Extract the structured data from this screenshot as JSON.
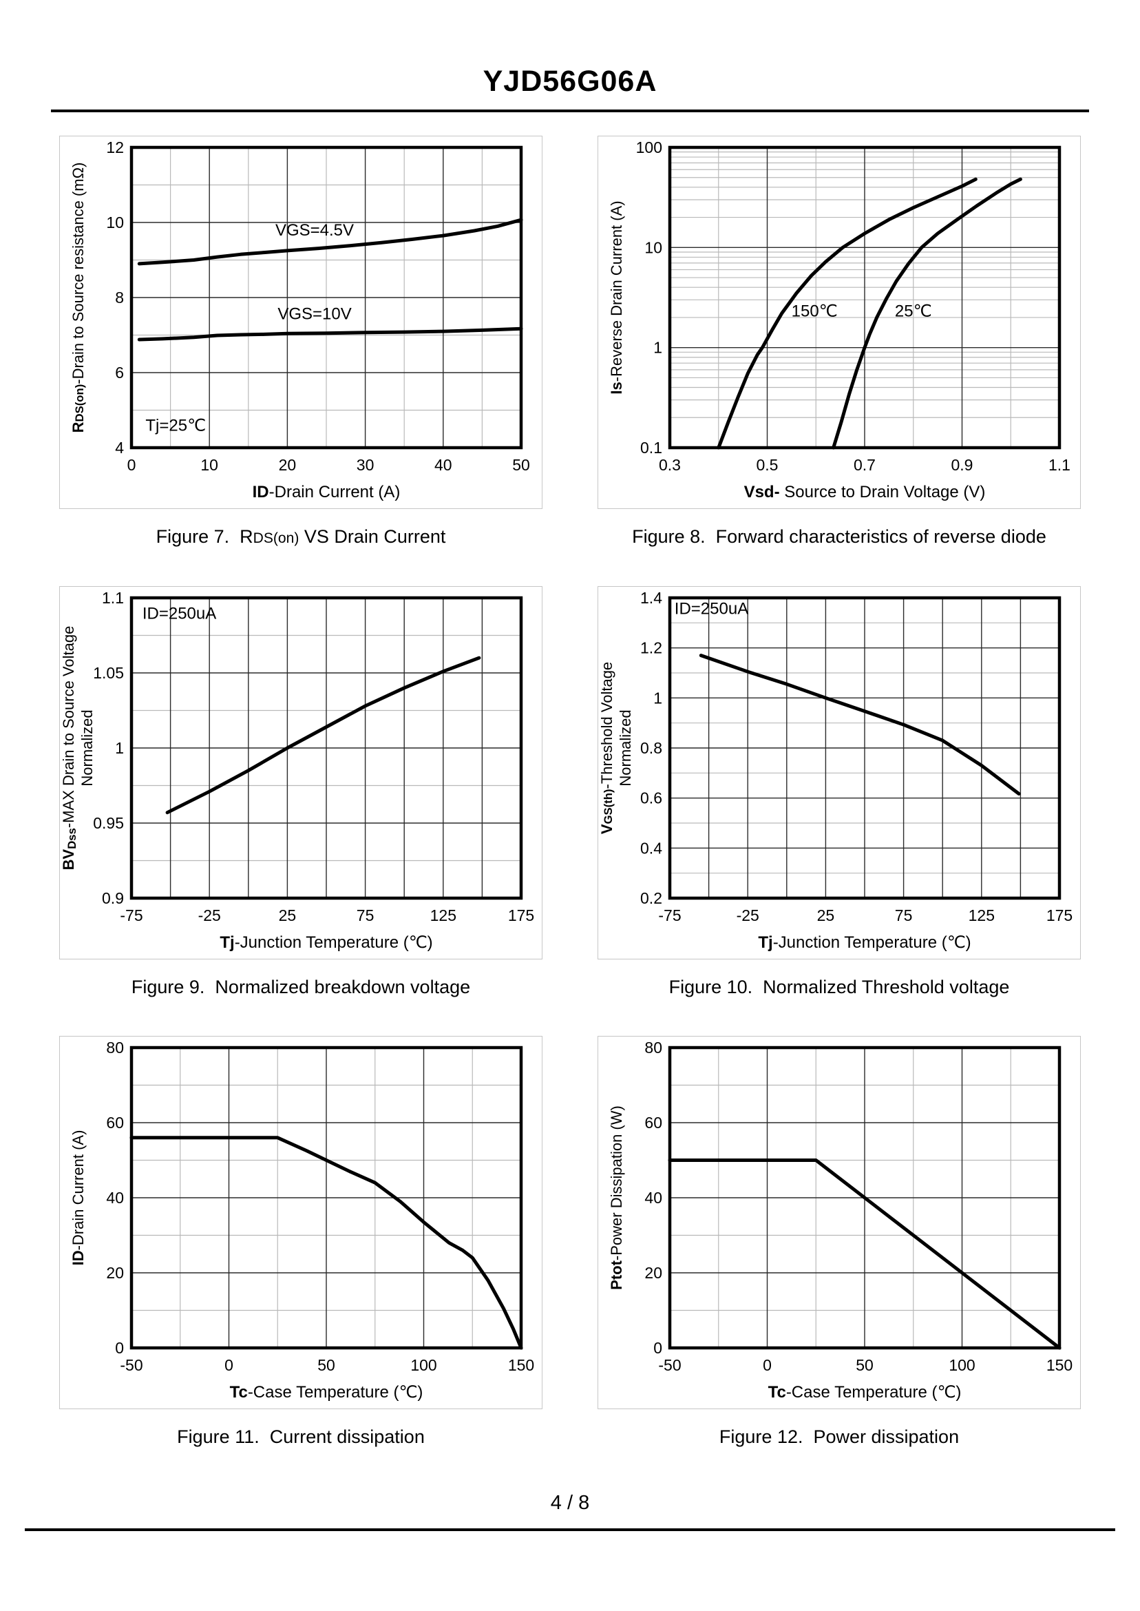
{
  "page": {
    "title": "YJD56G06A",
    "page_number": "4 / 8"
  },
  "chart_data": [
    {
      "id": "figure-7",
      "type": "line",
      "caption": [
        {
          "t": "Figure 7.  R"
        },
        {
          "t": "DS(on)",
          "small": true
        },
        {
          "t": " VS Drain Current"
        }
      ],
      "xlabel": [
        {
          "t": "ID",
          "b": true
        },
        {
          "t": "-Drain Current  (A)"
        }
      ],
      "ylabel": [
        [
          {
            "t": "R",
            "b": true
          },
          {
            "t": "DS(on)",
            "b": true,
            "small": true
          },
          {
            "t": "-Drain to Source resistance  (mΩ)"
          }
        ]
      ],
      "x": {
        "min": 0,
        "max": 50,
        "ticks": [
          [
            0,
            "0"
          ],
          [
            10,
            "10"
          ],
          [
            20,
            "20"
          ],
          [
            30,
            "30"
          ],
          [
            40,
            "40"
          ],
          [
            50,
            "50"
          ]
        ],
        "grid_major": [
          10,
          20,
          30,
          40
        ],
        "grid_minor": [
          5,
          15,
          25,
          35,
          45
        ]
      },
      "y": {
        "min": 4,
        "max": 12,
        "ticks": [
          [
            4,
            "4"
          ],
          [
            6,
            "6"
          ],
          [
            8,
            "8"
          ],
          [
            10,
            "10"
          ],
          [
            12,
            "12"
          ]
        ],
        "grid_major": [
          6,
          8,
          10
        ],
        "grid_minor": [
          5,
          7,
          9,
          11
        ]
      },
      "annotations": [
        {
          "t": "VGS=4.5V",
          "x": 23.5,
          "y": 9.65,
          "anchor": "middle"
        },
        {
          "t": "VGS=10V",
          "x": 23.5,
          "y": 7.42,
          "anchor": "middle"
        },
        {
          "t": "Tj=25℃",
          "x": 1.8,
          "y": 4.45,
          "anchor": "start"
        }
      ],
      "series": [
        {
          "name": "VGS=4.5V",
          "points": [
            [
              1,
              8.9
            ],
            [
              4,
              8.94
            ],
            [
              8,
              9.0
            ],
            [
              11,
              9.08
            ],
            [
              14,
              9.15
            ],
            [
              17,
              9.2
            ],
            [
              20,
              9.25
            ],
            [
              24,
              9.31
            ],
            [
              28,
              9.38
            ],
            [
              32,
              9.46
            ],
            [
              36,
              9.55
            ],
            [
              40,
              9.65
            ],
            [
              44,
              9.78
            ],
            [
              47,
              9.9
            ],
            [
              50,
              10.07
            ]
          ]
        },
        {
          "name": "VGS=10V",
          "points": [
            [
              1,
              6.88
            ],
            [
              4,
              6.9
            ],
            [
              8,
              6.94
            ],
            [
              11,
              6.99
            ],
            [
              14,
              7.01
            ],
            [
              17,
              7.02
            ],
            [
              20,
              7.04
            ],
            [
              25,
              7.05
            ],
            [
              30,
              7.07
            ],
            [
              35,
              7.08
            ],
            [
              40,
              7.1
            ],
            [
              45,
              7.13
            ],
            [
              50,
              7.17
            ]
          ]
        }
      ]
    },
    {
      "id": "figure-8",
      "type": "line",
      "caption": [
        {
          "t": "Figure 8.  Forward characteristics of reverse diode"
        }
      ],
      "xlabel": [
        {
          "t": "Vsd-",
          "b": true
        },
        {
          "t": " Source to Drain Voltage (V)"
        }
      ],
      "ylabel": [
        [
          {
            "t": "Is",
            "b": true
          },
          {
            "t": "-Reverse  Drain Current  (A)"
          }
        ]
      ],
      "x": {
        "min": 0.3,
        "max": 1.1,
        "ticks": [
          [
            0.3,
            "0.3"
          ],
          [
            0.5,
            "0.5"
          ],
          [
            0.7,
            "0.7"
          ],
          [
            0.9,
            "0.9"
          ],
          [
            1.1,
            "1.1"
          ]
        ],
        "grid_major": [
          0.5,
          0.7,
          0.9
        ],
        "grid_minor": [
          0.4,
          0.6,
          0.8,
          1.0
        ]
      },
      "y": {
        "min": 0.1,
        "max": 100,
        "scale": "log",
        "ticks": [
          [
            0.1,
            "0.1"
          ],
          [
            1,
            "1"
          ],
          [
            10,
            "10"
          ],
          [
            100,
            "100"
          ]
        ],
        "grid_major": [
          1,
          10
        ],
        "grid_minor": [],
        "log_minor": true
      },
      "annotations": [
        {
          "t": "150℃",
          "x": 0.597,
          "y": 2.05,
          "anchor": "middle"
        },
        {
          "t": "25℃",
          "x": 0.8,
          "y": 2.05,
          "anchor": "middle"
        }
      ],
      "series": [
        {
          "name": "150C",
          "points": [
            [
              0.4,
              0.1
            ],
            [
              0.42,
              0.18
            ],
            [
              0.44,
              0.32
            ],
            [
              0.46,
              0.55
            ],
            [
              0.48,
              0.85
            ],
            [
              0.49,
              1.0
            ],
            [
              0.51,
              1.5
            ],
            [
              0.53,
              2.2
            ],
            [
              0.56,
              3.5
            ],
            [
              0.59,
              5.2
            ],
            [
              0.62,
              7.2
            ],
            [
              0.655,
              10
            ],
            [
              0.7,
              13.8
            ],
            [
              0.75,
              19
            ],
            [
              0.8,
              25
            ],
            [
              0.85,
              32
            ],
            [
              0.9,
              41
            ],
            [
              0.928,
              48
            ]
          ]
        },
        {
          "name": "25C",
          "points": [
            [
              0.636,
              0.1
            ],
            [
              0.652,
              0.18
            ],
            [
              0.668,
              0.34
            ],
            [
              0.684,
              0.6
            ],
            [
              0.7,
              1.0
            ],
            [
              0.71,
              1.35
            ],
            [
              0.725,
              2.0
            ],
            [
              0.745,
              3.1
            ],
            [
              0.765,
              4.6
            ],
            [
              0.79,
              6.9
            ],
            [
              0.817,
              10
            ],
            [
              0.85,
              13.8
            ],
            [
              0.89,
              19
            ],
            [
              0.93,
              26
            ],
            [
              0.97,
              35
            ],
            [
              1.0,
              43
            ],
            [
              1.02,
              48
            ]
          ]
        }
      ]
    },
    {
      "id": "figure-9",
      "type": "line",
      "caption": [
        {
          "t": "Figure 9.  Normalized breakdown voltage"
        }
      ],
      "xlabel": [
        {
          "t": "Tj",
          "b": true
        },
        {
          "t": "-Junction  Temperature  (℃)"
        }
      ],
      "ylabel": [
        [
          {
            "t": "BV",
            "b": true
          },
          {
            "t": "Dss",
            "b": true,
            "small": true,
            "sub": true
          },
          {
            "t": "-MAX  Drain to Source  Voltage"
          }
        ],
        [
          {
            "t": "Normalized"
          }
        ]
      ],
      "x": {
        "min": -75,
        "max": 175,
        "ticks": [
          [
            -75,
            "-75"
          ],
          [
            -25,
            "-25"
          ],
          [
            25,
            "25"
          ],
          [
            75,
            "75"
          ],
          [
            125,
            "125"
          ],
          [
            175,
            "175"
          ]
        ],
        "grid_major": [
          -50,
          -25,
          0,
          25,
          50,
          75,
          100,
          125,
          150
        ],
        "grid_minor": []
      },
      "y": {
        "min": 0.9,
        "max": 1.1,
        "ticks": [
          [
            0.9,
            "0.9"
          ],
          [
            0.95,
            "0.95"
          ],
          [
            1,
            "1"
          ],
          [
            1.05,
            "1.05"
          ],
          [
            1.1,
            "1.1"
          ]
        ],
        "grid_major": [
          0.95,
          1,
          1.05
        ],
        "grid_minor": [
          0.925,
          0.975,
          1.025,
          1.075
        ]
      },
      "annotations": [
        {
          "t": "ID=250uA",
          "x": -68,
          "y": 1.086,
          "anchor": "start"
        }
      ],
      "series": [
        {
          "name": "BVdss-normalized",
          "points": [
            [
              -52,
              0.957
            ],
            [
              -25,
              0.971
            ],
            [
              0,
              0.985
            ],
            [
              25,
              1.0
            ],
            [
              50,
              1.014
            ],
            [
              75,
              1.028
            ],
            [
              100,
              1.04
            ],
            [
              125,
              1.051
            ],
            [
              148,
              1.06
            ]
          ]
        }
      ]
    },
    {
      "id": "figure-10",
      "type": "line",
      "caption": [
        {
          "t": "Figure 10.  Normalized Threshold voltage"
        }
      ],
      "xlabel": [
        {
          "t": "Tj",
          "b": true
        },
        {
          "t": "-Junction  Temperature  (℃)"
        }
      ],
      "ylabel": [
        [
          {
            "t": "V",
            "b": true
          },
          {
            "t": "GS(th)",
            "b": true,
            "small": true
          },
          {
            "t": "-Threshold  Voltage"
          }
        ],
        [
          {
            "t": "Normalized"
          }
        ]
      ],
      "x": {
        "min": -75,
        "max": 175,
        "ticks": [
          [
            -75,
            "-75"
          ],
          [
            -25,
            "-25"
          ],
          [
            25,
            "25"
          ],
          [
            75,
            "75"
          ],
          [
            125,
            "125"
          ],
          [
            175,
            "175"
          ]
        ],
        "grid_major": [
          -50,
          -25,
          0,
          25,
          50,
          75,
          100,
          125,
          150
        ],
        "grid_minor": []
      },
      "y": {
        "min": 0.2,
        "max": 1.4,
        "ticks": [
          [
            0.2,
            "0.2"
          ],
          [
            0.4,
            "0.4"
          ],
          [
            0.6,
            "0.6"
          ],
          [
            0.8,
            "0.8"
          ],
          [
            1,
            "1"
          ],
          [
            1.2,
            "1.2"
          ],
          [
            1.4,
            "1.4"
          ]
        ],
        "grid_major": [
          0.4,
          0.6,
          0.8,
          1.0,
          1.2
        ],
        "grid_minor": [
          0.3,
          0.5,
          0.7,
          0.9,
          1.1,
          1.3
        ]
      },
      "annotations": [
        {
          "t": "ID=250uA",
          "x": -72,
          "y": 1.335,
          "anchor": "start"
        }
      ],
      "series": [
        {
          "name": "VGSth-normalized",
          "points": [
            [
              -55,
              1.17
            ],
            [
              -25,
              1.105
            ],
            [
              0,
              1.055
            ],
            [
              25,
              1.0
            ],
            [
              50,
              0.947
            ],
            [
              75,
              0.893
            ],
            [
              100,
              0.83
            ],
            [
              125,
              0.73
            ],
            [
              149,
              0.617
            ]
          ]
        }
      ]
    },
    {
      "id": "figure-11",
      "type": "line",
      "caption": [
        {
          "t": "Figure 11.  Current dissipation"
        }
      ],
      "xlabel": [
        {
          "t": "Tc",
          "b": true
        },
        {
          "t": "-Case Temperature  (℃)"
        }
      ],
      "ylabel": [
        [
          {
            "t": "ID",
            "b": true
          },
          {
            "t": "-Drain Current  (A)"
          }
        ]
      ],
      "x": {
        "min": -50,
        "max": 150,
        "ticks": [
          [
            -50,
            "-50"
          ],
          [
            0,
            "0"
          ],
          [
            50,
            "50"
          ],
          [
            100,
            "100"
          ],
          [
            150,
            "150"
          ]
        ],
        "grid_major": [
          0,
          50,
          100
        ],
        "grid_minor": [
          -25,
          25,
          75,
          125
        ]
      },
      "y": {
        "min": 0,
        "max": 80,
        "ticks": [
          [
            0,
            "0"
          ],
          [
            20,
            "20"
          ],
          [
            40,
            "40"
          ],
          [
            60,
            "60"
          ],
          [
            80,
            "80"
          ]
        ],
        "grid_major": [
          20,
          40,
          60
        ],
        "grid_minor": [
          10,
          30,
          50,
          70
        ]
      },
      "annotations": [],
      "series": [
        {
          "name": "ID-limit",
          "points": [
            [
              -50,
              56
            ],
            [
              25,
              56
            ],
            [
              40,
              52.5
            ],
            [
              50,
              50
            ],
            [
              62,
              47
            ],
            [
              75,
              44
            ],
            [
              88,
              39
            ],
            [
              100,
              33.5
            ],
            [
              113,
              28
            ],
            [
              120,
              26
            ],
            [
              125,
              24
            ],
            [
              133,
              18
            ],
            [
              141,
              10.5
            ],
            [
              146,
              5
            ],
            [
              150,
              0
            ]
          ]
        }
      ]
    },
    {
      "id": "figure-12",
      "type": "line",
      "caption": [
        {
          "t": "Figure 12.  Power dissipation"
        }
      ],
      "xlabel": [
        {
          "t": "Tc",
          "b": true
        },
        {
          "t": "-Case Temperature  (℃)"
        }
      ],
      "ylabel": [
        [
          {
            "t": "Ptot",
            "b": true
          },
          {
            "t": "-Power Dissipation  (W)"
          }
        ]
      ],
      "x": {
        "min": -50,
        "max": 150,
        "ticks": [
          [
            -50,
            "-50"
          ],
          [
            0,
            "0"
          ],
          [
            50,
            "50"
          ],
          [
            100,
            "100"
          ],
          [
            150,
            "150"
          ]
        ],
        "grid_major": [
          0,
          50,
          100
        ],
        "grid_minor": [
          -25,
          25,
          75,
          125
        ]
      },
      "y": {
        "min": 0,
        "max": 80,
        "ticks": [
          [
            0,
            "0"
          ],
          [
            20,
            "20"
          ],
          [
            40,
            "40"
          ],
          [
            60,
            "60"
          ],
          [
            80,
            "80"
          ]
        ],
        "grid_major": [
          20,
          40,
          60
        ],
        "grid_minor": [
          10,
          30,
          50,
          70
        ]
      },
      "annotations": [],
      "series": [
        {
          "name": "Ptot-limit",
          "points": [
            [
              -50,
              50
            ],
            [
              25,
              50
            ],
            [
              150,
              0
            ]
          ]
        }
      ]
    }
  ]
}
